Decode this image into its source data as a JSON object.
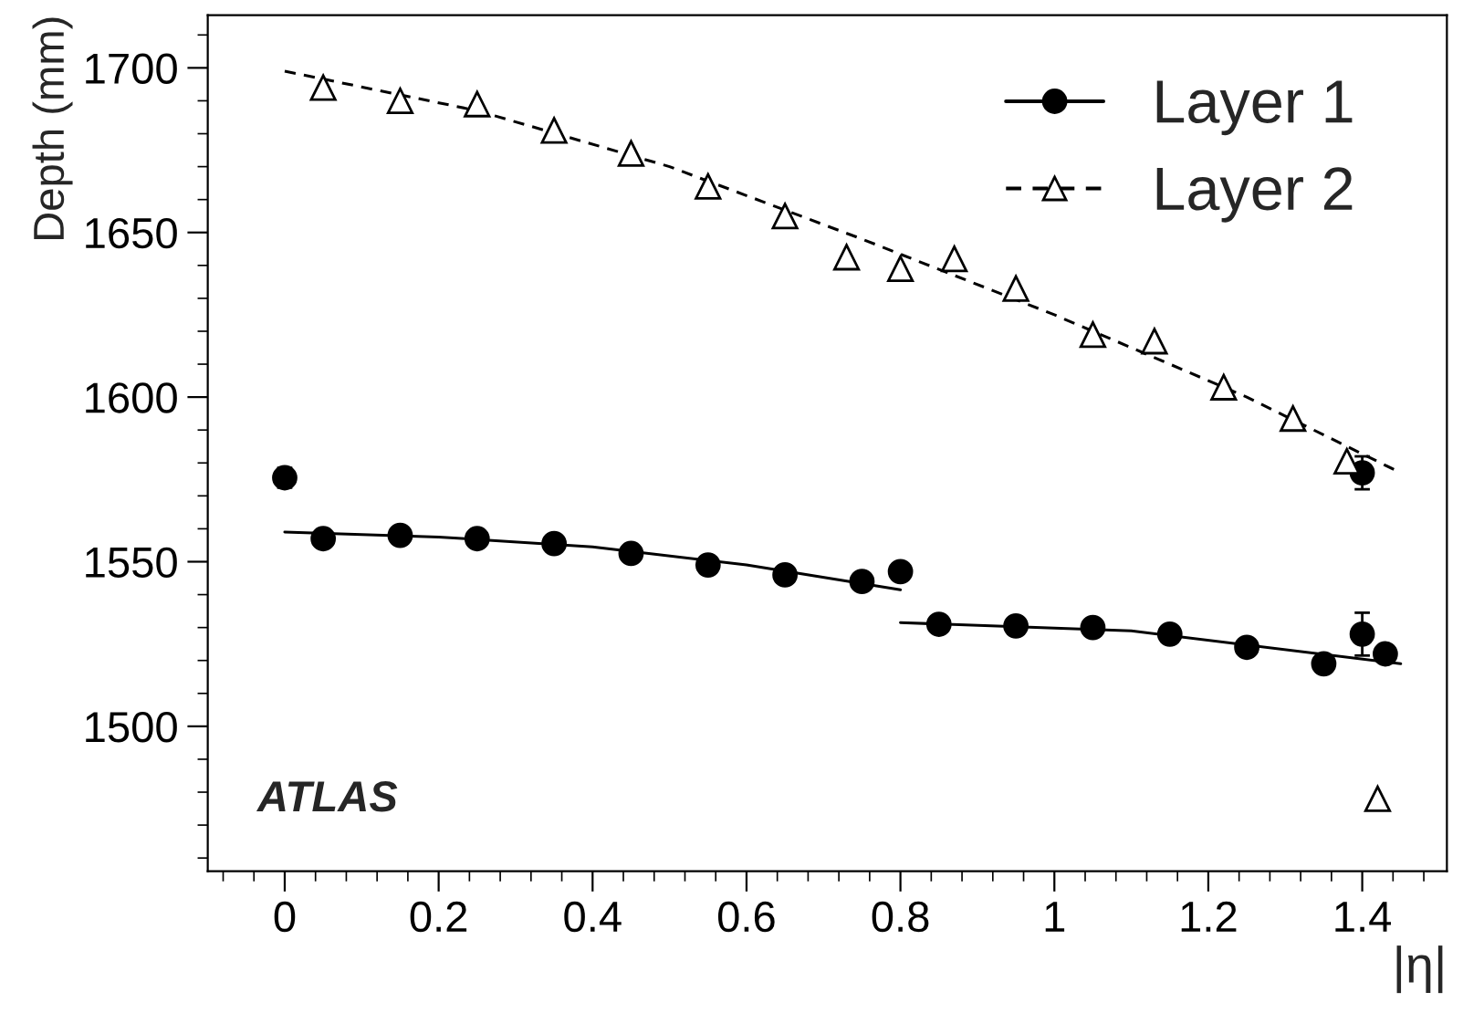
{
  "chart_data": {
    "type": "scatter",
    "xlabel": "|η|",
    "ylabel": "Depth (mm)",
    "xlim": [
      -0.1,
      1.51
    ],
    "ylim": [
      1456,
      1716
    ],
    "xticks": [
      0,
      0.2,
      0.4,
      0.6,
      0.8,
      1,
      1.2,
      1.4
    ],
    "yticks": [
      1500,
      1550,
      1600,
      1650,
      1700
    ],
    "grid": false,
    "legend": "top right",
    "annotations": [
      "ATLAS"
    ],
    "series": [
      {
        "name": "Layer 1",
        "marker": "circle",
        "line_style": "solid",
        "color": "#000000",
        "x": [
          0,
          0.05,
          0.15,
          0.25,
          0.35,
          0.45,
          0.55,
          0.65,
          0.75,
          0.8,
          0.85,
          0.95,
          1.05,
          1.15,
          1.25,
          1.35,
          1.4,
          1.4,
          1.43
        ],
        "values": [
          1575.5,
          1557,
          1558,
          1557,
          1555.5,
          1552.5,
          1549,
          1546,
          1544,
          1547,
          1531,
          1530.5,
          1530,
          1528,
          1524,
          1519,
          1577,
          1528,
          1522
        ],
        "errors": [
          3,
          null,
          null,
          null,
          null,
          null,
          null,
          null,
          null,
          null,
          null,
          null,
          null,
          null,
          null,
          null,
          5,
          6.5,
          null
        ]
      },
      {
        "name": "Layer 2",
        "marker": "triangle",
        "line_style": "dashed",
        "color": "#000000",
        "x": [
          0.05,
          0.15,
          0.25,
          0.35,
          0.45,
          0.55,
          0.65,
          0.73,
          0.8,
          0.87,
          0.95,
          1.05,
          1.13,
          1.22,
          1.31,
          1.38,
          1.42
        ],
        "values": [
          1694,
          1690,
          1689,
          1681,
          1674,
          1664,
          1655,
          1642.5,
          1639,
          1642,
          1633,
          1619,
          1617,
          1603,
          1593.5,
          1580.5,
          1478
        ]
      },
      {
        "type": "line",
        "line_style": "solid",
        "color": "#000000",
        "x": [
          0,
          0.2,
          0.4,
          0.6,
          0.8
        ],
        "values": [
          1559,
          1557.5,
          1554.5,
          1549,
          1541.5
        ]
      },
      {
        "type": "line",
        "line_style": "solid",
        "color": "#000000",
        "x": [
          0.8,
          1.1,
          1.45
        ],
        "values": [
          1531.5,
          1529,
          1519
        ]
      },
      {
        "type": "line",
        "line_style": "dashed",
        "color": "#000000",
        "x": [
          0,
          0.25,
          0.5,
          0.75,
          1.0,
          1.25,
          1.45
        ],
        "values": [
          1699,
          1687,
          1670,
          1648,
          1625,
          1600,
          1577
        ]
      }
    ]
  }
}
